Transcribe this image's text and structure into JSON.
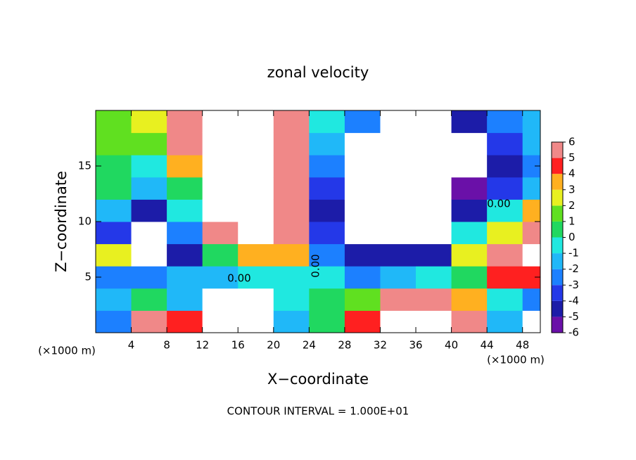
{
  "chart_data": {
    "type": "contour",
    "title": "zonal velocity",
    "x_label": "X−coordinate",
    "y_label": "Z−coordinate",
    "x_unit_left": "(×1000 m)",
    "x_unit_right": "(×1000 m)",
    "footer": "CONTOUR INTERVAL = 1.000E+01",
    "contour_labels": [
      "0.00",
      "0.00",
      "0.00"
    ],
    "x": [
      2,
      6,
      10,
      14,
      18,
      22,
      26,
      30,
      34,
      38,
      42,
      46,
      50
    ],
    "z": [
      1,
      3,
      5,
      7,
      9,
      11,
      13,
      15,
      17,
      19
    ],
    "values": [
      [
        -3,
        -2,
        -3,
        2,
        -4,
        -2,
        0,
        0,
        1,
        1
      ],
      [
        6,
        0,
        -3,
        -8,
        -8,
        -5,
        -2,
        -1,
        1,
        2
      ],
      [
        4,
        -2,
        -2,
        -5,
        -3,
        -1,
        0,
        3,
        5,
        5
      ],
      [
        -8,
        -8,
        -2,
        0,
        5,
        8,
        8,
        8,
        8,
        8
      ],
      [
        -8,
        8,
        -1,
        3,
        8,
        8,
        8,
        8,
        8,
        8
      ],
      [
        -2,
        -1,
        -1,
        3,
        5,
        5,
        5,
        5,
        5,
        5
      ],
      [
        0,
        0,
        -1,
        -3,
        -4,
        -5,
        -4,
        -3,
        -2,
        -1
      ],
      [
        4,
        1,
        -3,
        -5,
        -8,
        -8,
        -8,
        -8,
        -8,
        -3
      ],
      [
        8,
        5,
        -2,
        -5,
        -8,
        -8,
        -8,
        -8,
        -8,
        -8
      ],
      [
        8,
        5,
        -1,
        -5,
        -8,
        -8,
        -8,
        -8,
        -8,
        -8
      ],
      [
        5,
        3,
        0,
        2,
        -1,
        -5,
        -6,
        -8,
        -8,
        -5
      ],
      [
        -2,
        -1,
        4,
        5,
        2,
        -1,
        -4,
        -5,
        -4,
        -3
      ],
      [
        -8,
        -3,
        4,
        8,
        5,
        3,
        -2,
        -3,
        -2,
        -2
      ]
    ],
    "xlim": [
      0,
      50
    ],
    "ylim": [
      0,
      20
    ],
    "xticks": [
      4,
      8,
      12,
      16,
      20,
      24,
      28,
      32,
      36,
      40,
      44,
      48
    ],
    "yticks": [
      5,
      10,
      15
    ],
    "levels": [
      -6,
      -5,
      -4,
      -3,
      -2,
      -1,
      0,
      1,
      2,
      3,
      4,
      5,
      6
    ],
    "colors": [
      "#6a10a8",
      "#1c1ca8",
      "#2438e8",
      "#1c80ff",
      "#20b8f8",
      "#20e8e0",
      "#20d860",
      "#60e020",
      "#e8f020",
      "#ffb020",
      "#ff2020",
      "#f08888"
    ]
  }
}
